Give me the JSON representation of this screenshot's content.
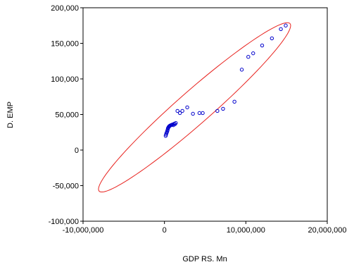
{
  "chart_data": {
    "type": "scatter",
    "xlabel": "GDP RS. Mn",
    "ylabel": "D. EMP",
    "xlim": [
      -10000000,
      20000000
    ],
    "ylim": [
      -100000,
      200000
    ],
    "x_ticks": [
      -10000000,
      0,
      10000000,
      20000000
    ],
    "x_tick_labels": [
      "-10,000,000",
      "0",
      "10,000,000",
      "20,000,000"
    ],
    "y_ticks": [
      -100000,
      -50000,
      0,
      50000,
      100000,
      150000,
      200000
    ],
    "y_tick_labels": [
      "-100,000",
      "-50,000",
      "0",
      "50,000",
      "100,000",
      "150,000",
      "200,000"
    ],
    "grid": false,
    "marker_color": "#0000cc",
    "ellipse_color": "#e8231f",
    "points": [
      [
        150000,
        20000
      ],
      [
        200000,
        22000
      ],
      [
        250000,
        24000
      ],
      [
        300000,
        25000
      ],
      [
        350000,
        27000
      ],
      [
        380000,
        28000
      ],
      [
        420000,
        30000
      ],
      [
        450000,
        31000
      ],
      [
        500000,
        32000
      ],
      [
        550000,
        33000
      ],
      [
        600000,
        33500
      ],
      [
        650000,
        34000
      ],
      [
        700000,
        34500
      ],
      [
        800000,
        35000
      ],
      [
        900000,
        35500
      ],
      [
        1000000,
        36000
      ],
      [
        1100000,
        35000
      ],
      [
        1200000,
        37000
      ],
      [
        1300000,
        36500
      ],
      [
        1400000,
        38000
      ],
      [
        1600000,
        55000
      ],
      [
        1900000,
        52000
      ],
      [
        2200000,
        55000
      ],
      [
        2800000,
        60000
      ],
      [
        3500000,
        51000
      ],
      [
        4300000,
        52000
      ],
      [
        4700000,
        52000
      ],
      [
        6500000,
        55000
      ],
      [
        7200000,
        58000
      ],
      [
        8600000,
        68000
      ],
      [
        9500000,
        113000
      ],
      [
        10300000,
        131000
      ],
      [
        10900000,
        136000
      ],
      [
        12000000,
        147000
      ],
      [
        13200000,
        157000
      ],
      [
        14300000,
        170000
      ],
      [
        14900000,
        175000
      ]
    ],
    "ellipse": {
      "center": [
        3700000,
        60000
      ],
      "endpoint_a": [
        -7700000,
        -57000
      ],
      "endpoint_b": [
        15400000,
        178000
      ],
      "minor_half_width_x": 1550000
    }
  }
}
